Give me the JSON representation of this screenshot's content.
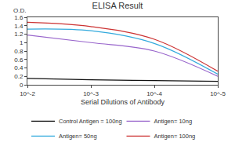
{
  "chart_data": {
    "type": "line",
    "title": "ELISA Result",
    "ylabel": "O.D.",
    "xlabel": "Serial Dilutions of Antibody",
    "log": "x",
    "x": [
      0.01,
      0.001,
      0.0001,
      1e-05
    ],
    "xlim": [
      0.01,
      1e-05
    ],
    "xticks": [
      {
        "value": 0.01,
        "label": "10^-2"
      },
      {
        "value": 0.001,
        "label": "10^-3"
      },
      {
        "value": 0.0001,
        "label": "10^-4"
      },
      {
        "value": 1e-05,
        "label": "10^-5"
      }
    ],
    "ylim": [
      0,
      1.6
    ],
    "yticks": [
      0,
      0.2,
      0.4,
      0.6,
      0.8,
      1,
      1.2,
      1.4,
      1.6
    ],
    "grid": false,
    "legend": "bottom",
    "series": [
      {
        "name": "Control Antigen = 100ng",
        "color": "#111111",
        "values": [
          0.15,
          0.12,
          0.1,
          0.08
        ]
      },
      {
        "name": "Antigen= 10ng",
        "color": "#9966cc",
        "values": [
          1.18,
          1.0,
          0.8,
          0.2
        ]
      },
      {
        "name": "Antigen= 50ng",
        "color": "#33aadd",
        "values": [
          1.32,
          1.28,
          0.98,
          0.25
        ]
      },
      {
        "name": "Antigen= 100ng",
        "color": "#cc3333",
        "values": [
          1.48,
          1.38,
          1.08,
          0.32
        ]
      }
    ]
  }
}
